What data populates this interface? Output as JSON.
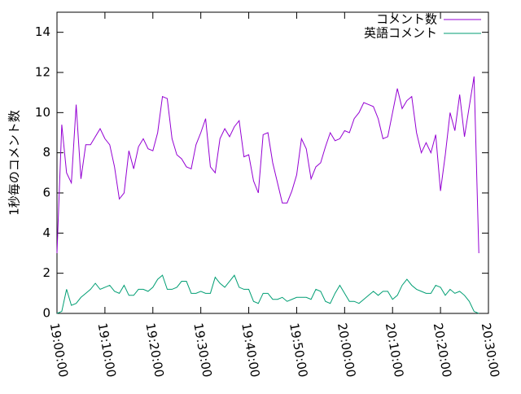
{
  "chart_data": {
    "type": "line",
    "ylabel": "1秒毎のコメント数",
    "x": [
      "19:00:00",
      "19:01:00",
      "19:02:00",
      "19:03:00",
      "19:04:00",
      "19:05:00",
      "19:06:00",
      "19:07:00",
      "19:08:00",
      "19:09:00",
      "19:10:00",
      "19:11:00",
      "19:12:00",
      "19:13:00",
      "19:14:00",
      "19:15:00",
      "19:16:00",
      "19:17:00",
      "19:18:00",
      "19:19:00",
      "19:20:00",
      "19:21:00",
      "19:22:00",
      "19:23:00",
      "19:24:00",
      "19:25:00",
      "19:26:00",
      "19:27:00",
      "19:28:00",
      "19:29:00",
      "19:30:00",
      "19:31:00",
      "19:32:00",
      "19:33:00",
      "19:34:00",
      "19:35:00",
      "19:36:00",
      "19:37:00",
      "19:38:00",
      "19:39:00",
      "19:40:00",
      "19:41:00",
      "19:42:00",
      "19:43:00",
      "19:44:00",
      "19:45:00",
      "19:46:00",
      "19:47:00",
      "19:48:00",
      "19:49:00",
      "19:50:00",
      "19:51:00",
      "19:52:00",
      "19:53:00",
      "19:54:00",
      "19:55:00",
      "19:56:00",
      "19:57:00",
      "19:58:00",
      "19:59:00",
      "20:00:00",
      "20:01:00",
      "20:02:00",
      "20:03:00",
      "20:04:00",
      "20:05:00",
      "20:06:00",
      "20:07:00",
      "20:08:00",
      "20:09:00",
      "20:10:00",
      "20:11:00",
      "20:12:00",
      "20:13:00",
      "20:14:00",
      "20:15:00",
      "20:16:00",
      "20:17:00",
      "20:18:00",
      "20:19:00",
      "20:20:00",
      "20:21:00",
      "20:22:00",
      "20:23:00",
      "20:24:00",
      "20:25:00",
      "20:26:00",
      "20:27:00",
      "20:28:00"
    ],
    "series": [
      {
        "name": "コメント数",
        "color": "#9400d3",
        "values": [
          3.0,
          9.4,
          7.0,
          6.5,
          10.4,
          6.7,
          8.4,
          8.4,
          8.8,
          9.2,
          8.7,
          8.4,
          7.3,
          5.7,
          6.0,
          8.1,
          7.2,
          8.3,
          8.7,
          8.2,
          8.1,
          9.0,
          10.8,
          10.7,
          8.7,
          7.9,
          7.7,
          7.3,
          7.2,
          8.4,
          9.0,
          9.7,
          7.3,
          7.0,
          8.7,
          9.2,
          8.8,
          9.3,
          9.6,
          7.8,
          7.9,
          6.6,
          6.0,
          8.9,
          9.0,
          7.5,
          6.5,
          5.5,
          5.5,
          6.1,
          6.9,
          8.7,
          8.2,
          6.7,
          7.3,
          7.5,
          8.3,
          9.0,
          8.6,
          8.7,
          9.1,
          9.0,
          9.7,
          10.0,
          10.5,
          10.4,
          10.3,
          9.7,
          8.7,
          8.8,
          10.0,
          11.2,
          10.2,
          10.6,
          10.8,
          9.0,
          8.0,
          8.5,
          8.0,
          8.9,
          6.1,
          7.9,
          10.0,
          9.1,
          10.9,
          8.8,
          10.3,
          11.8,
          3.0
        ]
      },
      {
        "name": "英語コメント",
        "color": "#009e73",
        "values": [
          0,
          0.1,
          1.2,
          0.4,
          0.5,
          0.8,
          1.0,
          1.2,
          1.5,
          1.2,
          1.3,
          1.4,
          1.1,
          1.0,
          1.4,
          0.9,
          0.9,
          1.2,
          1.2,
          1.1,
          1.3,
          1.7,
          1.9,
          1.2,
          1.2,
          1.3,
          1.6,
          1.6,
          1.0,
          1.0,
          1.1,
          1.0,
          1.0,
          1.8,
          1.5,
          1.3,
          1.6,
          1.9,
          1.3,
          1.2,
          1.2,
          0.6,
          0.5,
          1.0,
          1.0,
          0.7,
          0.7,
          0.8,
          0.6,
          0.7,
          0.8,
          0.8,
          0.8,
          0.7,
          1.2,
          1.1,
          0.6,
          0.5,
          1.0,
          1.4,
          1.0,
          0.6,
          0.6,
          0.5,
          0.7,
          0.9,
          1.1,
          0.9,
          1.1,
          1.1,
          0.7,
          0.9,
          1.4,
          1.7,
          1.4,
          1.2,
          1.1,
          1.0,
          1.0,
          1.4,
          1.3,
          0.9,
          1.2,
          1.0,
          1.1,
          0.9,
          0.6,
          0.1,
          0.0
        ]
      }
    ],
    "xlim": [
      "19:00:00",
      "20:30:00"
    ],
    "xticks": [
      "19:00:00",
      "19:10:00",
      "19:20:00",
      "19:30:00",
      "19:40:00",
      "19:50:00",
      "20:00:00",
      "20:10:00",
      "20:20:00",
      "20:30:00"
    ],
    "ylim": [
      0,
      15
    ],
    "yticks": [
      0,
      2,
      4,
      6,
      8,
      10,
      12,
      14
    ],
    "grid": false,
    "legend": "top-right"
  }
}
